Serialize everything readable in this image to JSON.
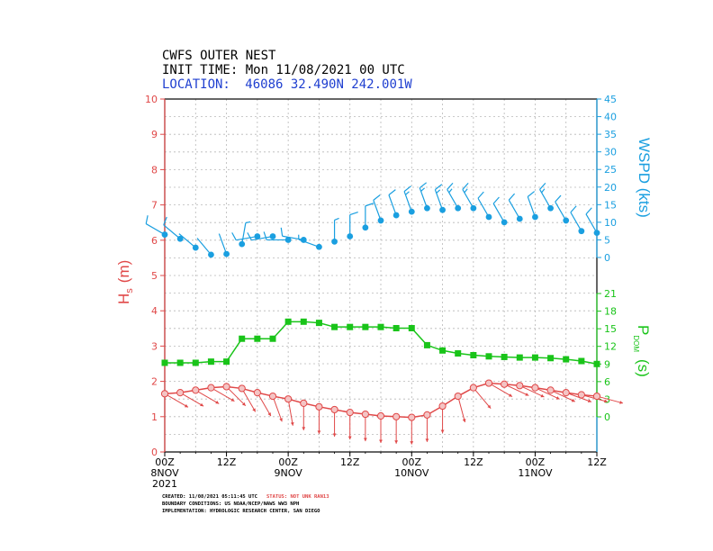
{
  "header": {
    "title": "CWFS OUTER NEST",
    "init_time": "INIT TIME: Mon 11/08/2021 00 UTC",
    "location_prefix": "LOCATION:",
    "location": "46086 32.490N 242.001W"
  },
  "colors": {
    "hs": "#e04848",
    "wspd": "#1a9fe0",
    "pdom": "#19c419",
    "header_blue": "#1f3fd0",
    "grid": "#b8b8b8"
  },
  "footer": {
    "created_label": "CREATED: 11/08/2021 05:11:45 UTC",
    "status": "STATUS: NOT UNK RAN13",
    "boundary": "BOUNDARY CONDITIONS: US NOAA/NCEP/NAWS WW3 NPH",
    "implementation": "IMPLEMENTATION: HYDROLOGIC RESEARCH CENTER, SAN DIEGO"
  },
  "chart_data": {
    "type": "line",
    "x_ticks": [
      {
        "top": "00Z",
        "bottom": [
          "8NOV",
          "2021"
        ]
      },
      {
        "top": "12Z",
        "bottom": []
      },
      {
        "top": "00Z",
        "bottom": [
          "9NOV"
        ]
      },
      {
        "top": "12Z",
        "bottom": []
      },
      {
        "top": "00Z",
        "bottom": [
          "10NOV"
        ]
      },
      {
        "top": "12Z",
        "bottom": []
      },
      {
        "top": "00Z",
        "bottom": [
          "11NOV"
        ]
      },
      {
        "top": "12Z",
        "bottom": []
      }
    ],
    "x_hours_range": [
      0,
      84
    ],
    "hs_axis": {
      "label_main": "H",
      "label_sub": "s",
      "label_unit": "(m)",
      "ylim": [
        0,
        10
      ],
      "ticks": [
        "0",
        "1",
        "2",
        "3",
        "4",
        "5",
        "6",
        "7",
        "8",
        "9",
        "10"
      ]
    },
    "wspd_axis": {
      "label": "WSPD (kts)",
      "range": [
        0,
        45
      ],
      "ticks": [
        "0",
        "5",
        "10",
        "15",
        "20",
        "25",
        "30",
        "35",
        "40",
        "45"
      ]
    },
    "pdom_axis": {
      "label_main": "P",
      "label_sub": "DOM",
      "label_unit": "(s)",
      "range": [
        0,
        21
      ],
      "ticks": [
        "0",
        "3",
        "6",
        "9",
        "12",
        "15",
        "18",
        "21"
      ]
    },
    "series": [
      {
        "name": "Hs",
        "x_hours": [
          0,
          3,
          6,
          9,
          12,
          15,
          18,
          21,
          24,
          27,
          30,
          33,
          36,
          39,
          42,
          45,
          48,
          51,
          54,
          57,
          60,
          63,
          66,
          69,
          72,
          75,
          78,
          81,
          84
        ],
        "values": [
          1.65,
          1.68,
          1.75,
          1.82,
          1.85,
          1.8,
          1.68,
          1.58,
          1.5,
          1.38,
          1.28,
          1.2,
          1.12,
          1.07,
          1.02,
          1.0,
          0.98,
          1.05,
          1.3,
          1.58,
          1.82,
          1.95,
          1.92,
          1.88,
          1.82,
          1.75,
          1.68,
          1.62,
          1.58
        ],
        "wave_dir_deg": [
          300,
          300,
          300,
          300,
          315,
          330,
          330,
          340,
          350,
          0,
          0,
          0,
          0,
          0,
          0,
          0,
          0,
          0,
          0,
          345,
          320,
          300,
          295,
          295,
          295,
          295,
          290,
          285,
          285
        ]
      },
      {
        "name": "WSPD",
        "x_hours": [
          0,
          3,
          6,
          9,
          12,
          15,
          18,
          21,
          24,
          27,
          30,
          33,
          36,
          39,
          42,
          45,
          48,
          51,
          54,
          57,
          60,
          63,
          66,
          69,
          72,
          75,
          78,
          81,
          84
        ],
        "values": [
          6.5,
          5.3,
          2.8,
          0.8,
          1.0,
          3.8,
          6.0,
          6.0,
          5.0,
          5.0,
          3.0,
          4.5,
          6.0,
          8.5,
          10.5,
          12.0,
          13.0,
          14.0,
          13.5,
          14.0,
          14.0,
          11.5,
          10.0,
          11.0,
          11.5,
          14.0,
          10.5,
          7.5,
          7.0
        ],
        "wind_dir_deg": [
          300,
          310,
          310,
          320,
          340,
          10,
          260,
          260,
          270,
          280,
          290,
          0,
          0,
          0,
          340,
          340,
          340,
          340,
          340,
          330,
          330,
          330,
          330,
          330,
          340,
          330,
          330,
          330,
          330
        ]
      },
      {
        "name": "PDOM",
        "x_hours": [
          0,
          3,
          6,
          9,
          12,
          15,
          18,
          21,
          24,
          27,
          30,
          33,
          36,
          39,
          42,
          45,
          48,
          51,
          54,
          57,
          60,
          63,
          66,
          69,
          72,
          75,
          78,
          81,
          84
        ],
        "values": [
          9.2,
          9.2,
          9.2,
          9.4,
          9.4,
          13.3,
          13.3,
          13.3,
          16.2,
          16.2,
          16.0,
          15.3,
          15.3,
          15.3,
          15.3,
          15.1,
          15.1,
          12.2,
          11.3,
          10.8,
          10.5,
          10.3,
          10.2,
          10.1,
          10.1,
          10.0,
          9.8,
          9.5,
          9.0
        ]
      }
    ]
  }
}
